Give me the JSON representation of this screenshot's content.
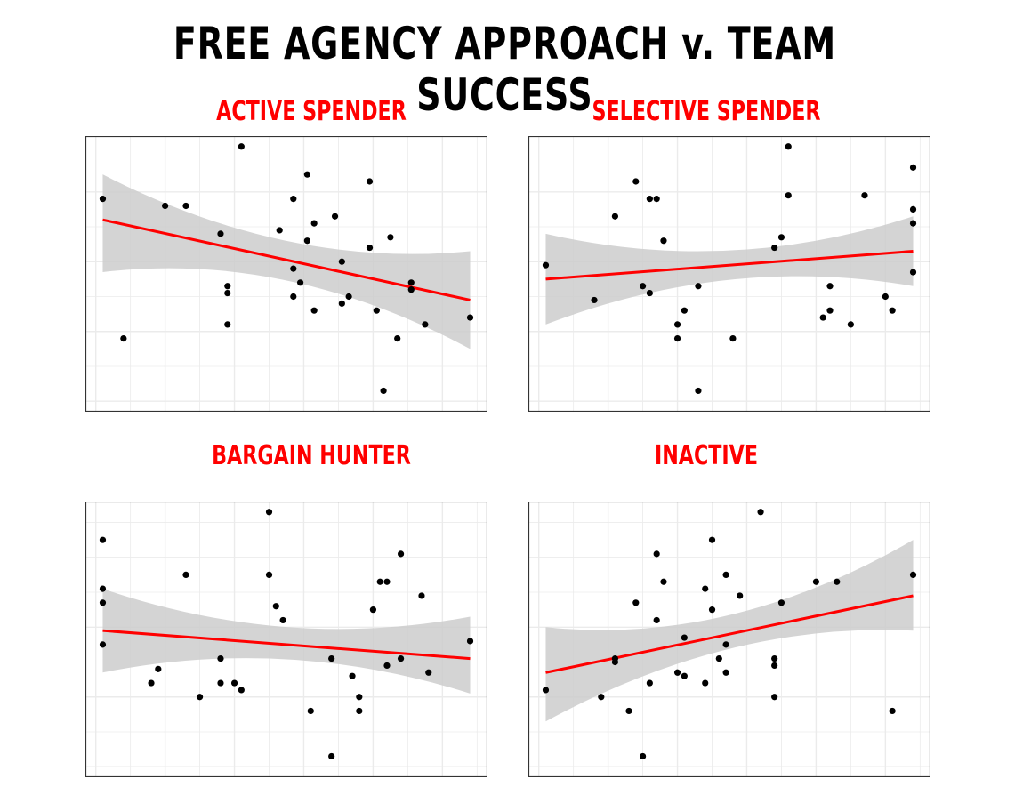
{
  "title": "FREE AGENCY APPROACH v. TEAM SUCCESS",
  "colors": {
    "title": "#000000",
    "panel_title": "#ff0000",
    "points": "#000000",
    "fit_line": "#ff0000",
    "confidence_band": "#cccccc",
    "grid": "#ebebeb",
    "border": "#333333",
    "background": "#ffffff"
  },
  "chart_data": [
    {
      "type": "scatter",
      "title": "ACTIVE SPENDER",
      "xlabel": "",
      "ylabel": "",
      "xlim": [
        -0.3,
        11.3
      ],
      "ylim": [
        -0.3,
        7.6
      ],
      "grid": true,
      "tick_labels": false,
      "legend": "none",
      "trend": {
        "y_start": 5.2,
        "y_end": 2.9,
        "x_start": 0.2,
        "x_end": 10.8,
        "ci_lower": [
          3.7,
          1.5
        ],
        "ci_upper": [
          6.5,
          4.3
        ]
      },
      "points": [
        [
          0.2,
          5.8
        ],
        [
          0.8,
          1.8
        ],
        [
          2.0,
          5.6
        ],
        [
          2.6,
          5.6
        ],
        [
          3.6,
          4.8
        ],
        [
          3.8,
          3.3
        ],
        [
          3.8,
          3.1
        ],
        [
          3.8,
          2.2
        ],
        [
          4.2,
          7.3
        ],
        [
          5.3,
          4.9
        ],
        [
          5.7,
          5.8
        ],
        [
          5.7,
          3.8
        ],
        [
          5.7,
          3.0
        ],
        [
          5.9,
          3.4
        ],
        [
          6.1,
          6.5
        ],
        [
          6.1,
          4.6
        ],
        [
          6.3,
          5.1
        ],
        [
          6.3,
          2.6
        ],
        [
          6.9,
          5.3
        ],
        [
          7.1,
          4.0
        ],
        [
          7.1,
          2.8
        ],
        [
          7.3,
          3.0
        ],
        [
          7.9,
          6.3
        ],
        [
          7.9,
          4.4
        ],
        [
          8.1,
          2.6
        ],
        [
          8.3,
          0.3
        ],
        [
          8.5,
          4.7
        ],
        [
          8.7,
          1.8
        ],
        [
          9.1,
          3.2
        ],
        [
          9.1,
          3.4
        ],
        [
          9.5,
          2.2
        ],
        [
          10.8,
          2.4
        ]
      ]
    },
    {
      "type": "scatter",
      "title": "SELECTIVE SPENDER",
      "xlabel": "",
      "ylabel": "",
      "xlim": [
        -0.3,
        11.3
      ],
      "ylim": [
        -0.3,
        7.6
      ],
      "grid": true,
      "tick_labels": false,
      "legend": "none",
      "trend": {
        "y_start": 3.5,
        "y_end": 4.3,
        "x_start": 0.2,
        "x_end": 10.8,
        "ci_lower": [
          2.2,
          3.3
        ],
        "ci_upper": [
          4.8,
          5.3
        ]
      },
      "points": [
        [
          0.2,
          3.9
        ],
        [
          1.6,
          2.9
        ],
        [
          2.2,
          5.3
        ],
        [
          2.8,
          6.3
        ],
        [
          3.0,
          3.3
        ],
        [
          3.2,
          5.8
        ],
        [
          3.4,
          5.8
        ],
        [
          3.6,
          4.6
        ],
        [
          3.2,
          3.1
        ],
        [
          4.0,
          2.2
        ],
        [
          4.0,
          1.8
        ],
        [
          4.2,
          2.6
        ],
        [
          4.6,
          3.3
        ],
        [
          4.6,
          0.3
        ],
        [
          5.6,
          1.8
        ],
        [
          6.8,
          4.4
        ],
        [
          7.0,
          4.7
        ],
        [
          7.2,
          7.3
        ],
        [
          7.2,
          5.9
        ],
        [
          8.2,
          2.4
        ],
        [
          8.4,
          2.6
        ],
        [
          8.4,
          3.3
        ],
        [
          9.0,
          2.2
        ],
        [
          9.4,
          5.9
        ],
        [
          10.0,
          3.0
        ],
        [
          10.2,
          2.6
        ],
        [
          10.8,
          6.7
        ],
        [
          10.8,
          5.5
        ],
        [
          10.8,
          5.1
        ],
        [
          10.8,
          3.7
        ]
      ]
    },
    {
      "type": "scatter",
      "title": "BARGAIN HUNTER",
      "xlabel": "",
      "ylabel": "",
      "xlim": [
        -0.3,
        11.3
      ],
      "ylim": [
        -0.3,
        7.6
      ],
      "grid": true,
      "tick_labels": false,
      "legend": "none",
      "trend": {
        "y_start": 3.9,
        "y_end": 3.1,
        "x_start": 0.2,
        "x_end": 10.8,
        "ci_lower": [
          2.7,
          2.1
        ],
        "ci_upper": [
          5.1,
          4.3
        ]
      },
      "points": [
        [
          0.2,
          6.5
        ],
        [
          0.2,
          5.1
        ],
        [
          0.2,
          4.7
        ],
        [
          0.2,
          3.5
        ],
        [
          1.6,
          2.4
        ],
        [
          1.8,
          2.8
        ],
        [
          2.6,
          5.5
        ],
        [
          3.0,
          2.0
        ],
        [
          3.6,
          2.4
        ],
        [
          3.6,
          3.1
        ],
        [
          4.0,
          2.4
        ],
        [
          4.2,
          2.2
        ],
        [
          5.0,
          7.3
        ],
        [
          5.0,
          5.5
        ],
        [
          5.2,
          4.6
        ],
        [
          5.4,
          4.2
        ],
        [
          6.2,
          1.6
        ],
        [
          6.8,
          3.1
        ],
        [
          6.8,
          0.3
        ],
        [
          7.4,
          2.6
        ],
        [
          7.6,
          2.0
        ],
        [
          7.6,
          1.6
        ],
        [
          8.0,
          4.5
        ],
        [
          8.2,
          5.3
        ],
        [
          8.4,
          5.3
        ],
        [
          8.4,
          2.9
        ],
        [
          8.8,
          3.1
        ],
        [
          8.8,
          6.1
        ],
        [
          9.4,
          4.9
        ],
        [
          9.6,
          2.7
        ],
        [
          10.8,
          3.6
        ]
      ]
    },
    {
      "type": "scatter",
      "title": "INACTIVE",
      "xlabel": "",
      "ylabel": "",
      "xlim": [
        -0.3,
        11.3
      ],
      "ylim": [
        -0.3,
        7.6
      ],
      "grid": true,
      "tick_labels": false,
      "legend": "none",
      "trend": {
        "y_start": 2.7,
        "y_end": 4.9,
        "x_start": 0.2,
        "x_end": 10.8,
        "ci_lower": [
          1.3,
          3.9
        ],
        "ci_upper": [
          4.0,
          6.5
        ]
      },
      "points": [
        [
          0.2,
          2.2
        ],
        [
          1.8,
          2.0
        ],
        [
          2.2,
          3.0
        ],
        [
          2.2,
          3.1
        ],
        [
          2.6,
          1.6
        ],
        [
          2.8,
          4.7
        ],
        [
          3.0,
          0.3
        ],
        [
          3.2,
          2.4
        ],
        [
          3.4,
          4.2
        ],
        [
          3.4,
          6.1
        ],
        [
          3.6,
          5.3
        ],
        [
          4.0,
          2.7
        ],
        [
          4.2,
          2.6
        ],
        [
          4.2,
          3.7
        ],
        [
          4.8,
          2.4
        ],
        [
          4.8,
          5.1
        ],
        [
          5.0,
          4.5
        ],
        [
          5.0,
          6.5
        ],
        [
          5.2,
          3.1
        ],
        [
          5.4,
          2.7
        ],
        [
          5.4,
          3.5
        ],
        [
          5.4,
          5.5
        ],
        [
          5.8,
          4.9
        ],
        [
          6.4,
          7.3
        ],
        [
          6.8,
          3.1
        ],
        [
          6.8,
          2.9
        ],
        [
          6.8,
          2.0
        ],
        [
          7.0,
          4.7
        ],
        [
          8.0,
          5.3
        ],
        [
          8.6,
          5.3
        ],
        [
          10.2,
          1.6
        ],
        [
          10.8,
          5.5
        ]
      ]
    }
  ]
}
